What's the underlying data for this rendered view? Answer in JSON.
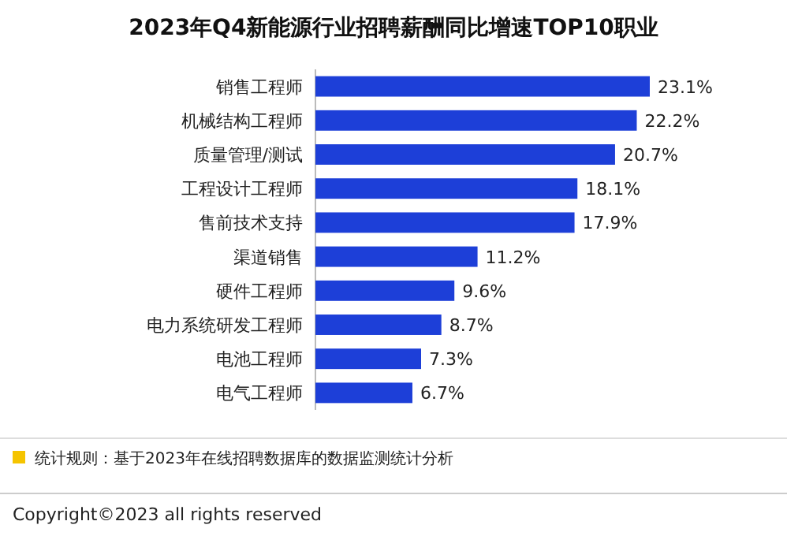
{
  "chart_data": {
    "type": "bar",
    "orientation": "horizontal",
    "title": "2023年Q4新能源行业招聘薪酬同比增速TOP10职业",
    "categories": [
      "销售工程师",
      "机械结构工程师",
      "质量管理/测试",
      "工程设计工程师",
      "售前技术支持",
      "渠道销售",
      "硬件工程师",
      "电力系统研发工程师",
      "电池工程师",
      "电气工程师"
    ],
    "values": [
      23.1,
      22.2,
      20.7,
      18.1,
      17.9,
      11.2,
      9.6,
      8.7,
      7.3,
      6.7
    ],
    "value_labels": [
      "23.1%",
      "22.2%",
      "20.7%",
      "18.1%",
      "17.9%",
      "11.2%",
      "9.6%",
      "8.7%",
      "7.3%",
      "6.7%"
    ],
    "color": "#1d3fd8",
    "annotations": [
      "统计规则：基于2023年在线招聘数据库的数据监测统计分析",
      "Copyright©2023 all rights reserved"
    ]
  }
}
